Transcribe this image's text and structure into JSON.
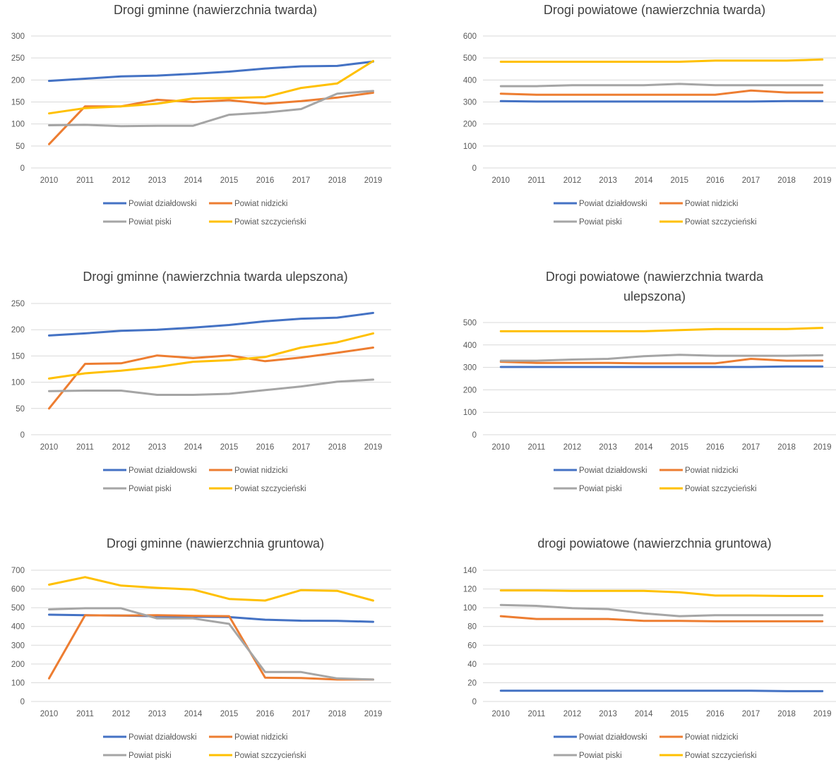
{
  "colors": {
    "Powiat działdowski": "#4472C4",
    "Powiat nidzicki": "#ED7D31",
    "Powiat piski": "#A5A5A5",
    "Powiat szczycieński": "#FFC000",
    "grid": "#d9d9d9",
    "text": "#595959",
    "title": "#404040"
  },
  "chart_data": [
    {
      "type": "line",
      "title": "Drogi gminne (nawierzchnia twarda)",
      "title_lines": [
        "Drogi gminne (nawierzchnia twarda)"
      ],
      "x": [
        "2010",
        "2011",
        "2012",
        "2013",
        "2014",
        "2015",
        "2016",
        "2017",
        "2018",
        "2019"
      ],
      "ylim": [
        0,
        300
      ],
      "yticks": [
        0,
        50,
        100,
        150,
        200,
        250,
        300
      ],
      "legend": "bottom",
      "series": [
        {
          "name": "Powiat działdowski",
          "values": [
            198,
            203,
            208,
            210,
            214,
            219,
            226,
            231,
            232,
            242
          ]
        },
        {
          "name": "Powiat nidzicki",
          "values": [
            54,
            140,
            140,
            155,
            150,
            154,
            146,
            152,
            160,
            171
          ]
        },
        {
          "name": "Powiat piski",
          "values": [
            97,
            98,
            95,
            96,
            96,
            121,
            126,
            134,
            169,
            175
          ]
        },
        {
          "name": "Powiat szczycieński",
          "values": [
            124,
            136,
            140,
            146,
            158,
            159,
            161,
            182,
            192,
            243
          ]
        }
      ]
    },
    {
      "type": "line",
      "title": "Drogi powiatowe (nawierzchnia twarda)",
      "title_lines": [
        "Drogi powiatowe (nawierzchnia twarda)"
      ],
      "x": [
        "2010",
        "2011",
        "2012",
        "2013",
        "2014",
        "2015",
        "2016",
        "2017",
        "2018",
        "2019"
      ],
      "ylim": [
        0,
        600
      ],
      "yticks": [
        0,
        100,
        200,
        300,
        400,
        500,
        600
      ],
      "legend": "bottom",
      "series": [
        {
          "name": "Powiat działdowski",
          "values": [
            304,
            302,
            302,
            302,
            302,
            302,
            302,
            302,
            304,
            304
          ]
        },
        {
          "name": "Powiat nidzicki",
          "values": [
            338,
            333,
            333,
            333,
            333,
            333,
            333,
            352,
            343,
            343
          ]
        },
        {
          "name": "Powiat piski",
          "values": [
            372,
            372,
            376,
            376,
            376,
            382,
            376,
            376,
            376,
            376
          ]
        },
        {
          "name": "Powiat szczycieński",
          "values": [
            483,
            483,
            483,
            483,
            483,
            483,
            488,
            488,
            488,
            493
          ]
        }
      ]
    },
    {
      "type": "line",
      "title": "Drogi gminne (nawierzchnia twarda ulepszona)",
      "title_lines": [
        "Drogi gminne (nawierzchnia twarda ulepszona)"
      ],
      "x": [
        "2010",
        "2011",
        "2012",
        "2013",
        "2014",
        "2015",
        "2016",
        "2017",
        "2018",
        "2019"
      ],
      "ylim": [
        0,
        250
      ],
      "yticks": [
        0,
        50,
        100,
        150,
        200,
        250
      ],
      "legend": "bottom",
      "series": [
        {
          "name": "Powiat działdowski",
          "values": [
            189,
            193,
            198,
            200,
            204,
            209,
            216,
            221,
            223,
            232
          ]
        },
        {
          "name": "Powiat nidzicki",
          "values": [
            50,
            135,
            136,
            151,
            146,
            151,
            140,
            147,
            156,
            166
          ]
        },
        {
          "name": "Powiat piski",
          "values": [
            83,
            84,
            84,
            76,
            76,
            78,
            85,
            92,
            101,
            105
          ]
        },
        {
          "name": "Powiat szczycieński",
          "values": [
            107,
            117,
            122,
            129,
            139,
            142,
            148,
            166,
            176,
            193
          ]
        }
      ]
    },
    {
      "type": "line",
      "title": "Drogi powiatowe (nawierzchnia twarda ulepszona)",
      "title_lines": [
        "Drogi powiatowe (nawierzchnia twarda",
        "ulepszona)"
      ],
      "x": [
        "2010",
        "2011",
        "2012",
        "2013",
        "2014",
        "2015",
        "2016",
        "2017",
        "2018",
        "2019"
      ],
      "ylim": [
        0,
        500
      ],
      "yticks": [
        0,
        100,
        200,
        300,
        400,
        500
      ],
      "legend": "bottom",
      "series": [
        {
          "name": "Powiat działdowski",
          "values": [
            302,
            302,
            302,
            302,
            302,
            302,
            302,
            302,
            304,
            304
          ]
        },
        {
          "name": "Powiat nidzicki",
          "values": [
            325,
            320,
            320,
            320,
            318,
            318,
            318,
            338,
            330,
            330
          ]
        },
        {
          "name": "Powiat piski",
          "values": [
            330,
            330,
            335,
            338,
            350,
            356,
            352,
            352,
            352,
            354
          ]
        },
        {
          "name": "Powiat szczycieński",
          "values": [
            461,
            461,
            461,
            461,
            461,
            466,
            471,
            471,
            471,
            476
          ]
        }
      ]
    },
    {
      "type": "line",
      "title": "Drogi gminne (nawierzchnia gruntowa)",
      "title_lines": [
        "Drogi gminne (nawierzchnia gruntowa)"
      ],
      "x": [
        "2010",
        "2011",
        "2012",
        "2013",
        "2014",
        "2015",
        "2016",
        "2017",
        "2018",
        "2019"
      ],
      "ylim": [
        0,
        700
      ],
      "yticks": [
        0,
        100,
        200,
        300,
        400,
        500,
        600,
        700
      ],
      "legend": "bottom",
      "series": [
        {
          "name": "Powiat działdowski",
          "values": [
            463,
            460,
            458,
            455,
            452,
            450,
            436,
            431,
            430,
            425
          ]
        },
        {
          "name": "Powiat nidzicki",
          "values": [
            123,
            460,
            458,
            460,
            457,
            455,
            127,
            125,
            117,
            117
          ]
        },
        {
          "name": "Powiat piski",
          "values": [
            491,
            497,
            497,
            443,
            443,
            414,
            157,
            157,
            123,
            117
          ]
        },
        {
          "name": "Powiat szczycieński",
          "values": [
            623,
            663,
            618,
            606,
            597,
            547,
            538,
            594,
            590,
            538
          ]
        }
      ]
    },
    {
      "type": "line",
      "title": "drogi powiatowe (nawierzchnia gruntowa)",
      "title_lines": [
        "drogi powiatowe (nawierzchnia gruntowa)"
      ],
      "x": [
        "2010",
        "2011",
        "2012",
        "2013",
        "2014",
        "2015",
        "2016",
        "2017",
        "2018",
        "2019"
      ],
      "ylim": [
        0,
        140
      ],
      "yticks": [
        0,
        20,
        40,
        60,
        80,
        100,
        120,
        140
      ],
      "legend": "bottom",
      "series": [
        {
          "name": "Powiat działdowski",
          "values": [
            11.5,
            11.5,
            11.5,
            11.5,
            11.5,
            11.5,
            11.5,
            11.5,
            11,
            11
          ]
        },
        {
          "name": "Powiat nidzicki",
          "values": [
            91,
            88,
            88,
            88,
            86,
            86,
            85.5,
            85.5,
            85.5,
            85.5
          ]
        },
        {
          "name": "Powiat piski",
          "values": [
            103,
            102,
            99.5,
            98.5,
            94,
            91,
            92,
            92,
            92,
            92
          ]
        },
        {
          "name": "Powiat szczycieński",
          "values": [
            118.5,
            118.5,
            118,
            118,
            118,
            116.5,
            113,
            113,
            112.5,
            112.5
          ]
        }
      ]
    }
  ]
}
